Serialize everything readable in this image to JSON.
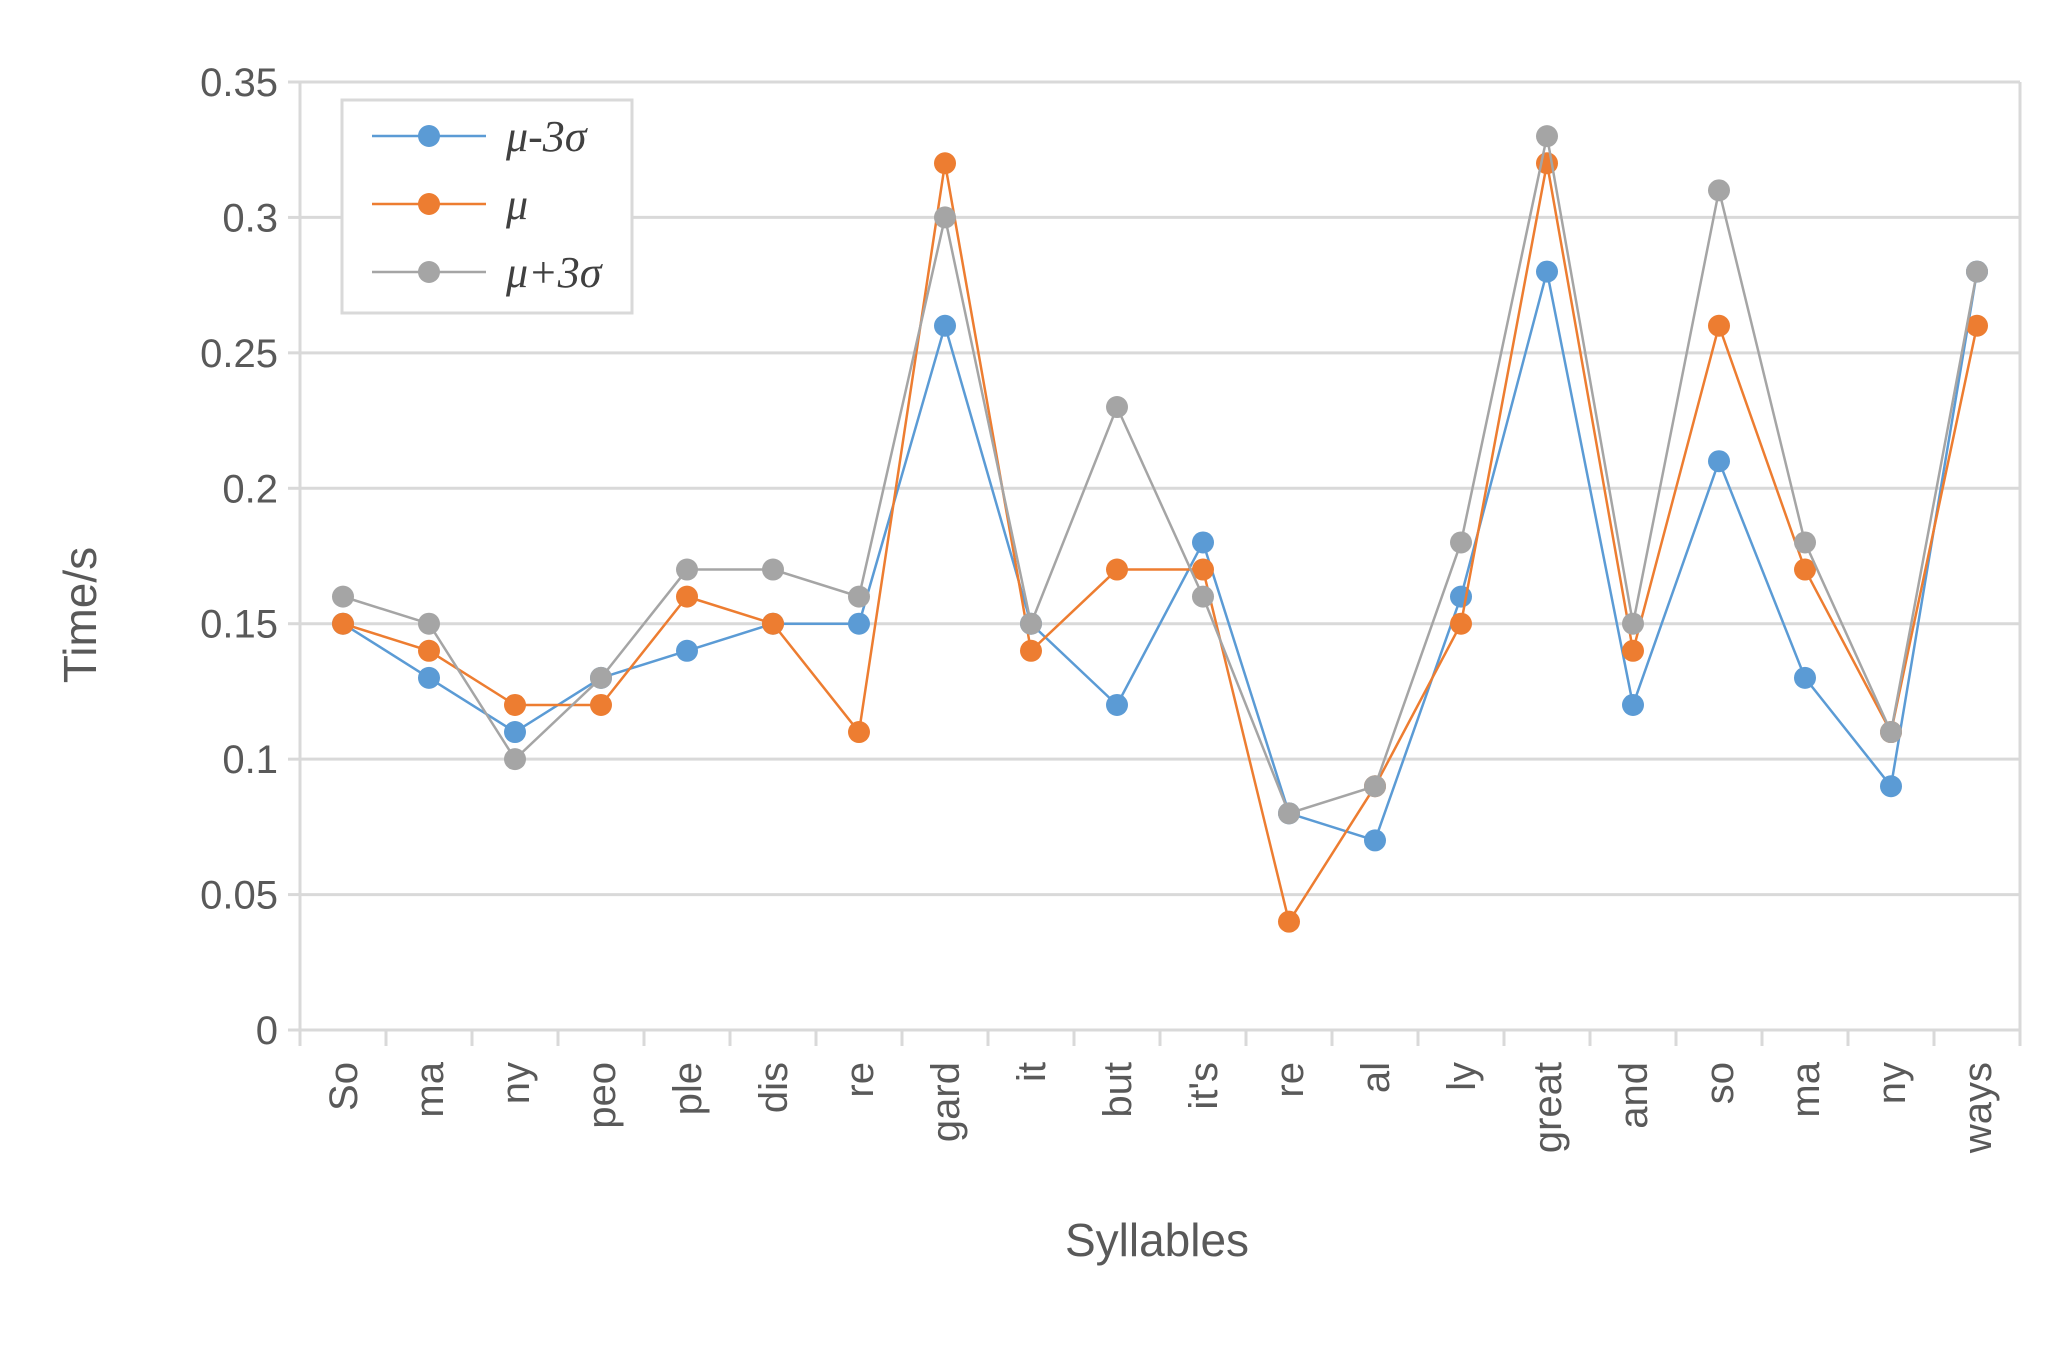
{
  "chart_data": {
    "type": "line",
    "xlabel": "Syllables",
    "ylabel": "Time/s",
    "categories": [
      "So",
      "ma",
      "ny",
      "peo",
      "ple",
      "dis",
      "re",
      "gard",
      "it",
      "but",
      "it's",
      "re",
      "al",
      "ly",
      "great",
      "and",
      "so",
      "ma",
      "ny",
      "ways"
    ],
    "ylim": [
      0,
      0.35
    ],
    "yticks": [
      "0",
      "0.05",
      "0.1",
      "0.15",
      "0.2",
      "0.25",
      "0.3",
      "0.35"
    ],
    "grid": true,
    "legend_position": "top-left",
    "series": [
      {
        "name": "μ-3σ",
        "color": "#5b9bd5",
        "values": [
          0.15,
          0.13,
          0.11,
          0.13,
          0.14,
          0.15,
          0.15,
          0.26,
          0.15,
          0.12,
          0.18,
          0.08,
          0.07,
          0.16,
          0.28,
          0.12,
          0.21,
          0.13,
          0.09,
          0.28
        ]
      },
      {
        "name": "μ",
        "color": "#ed7d31",
        "values": [
          0.15,
          0.14,
          0.12,
          0.12,
          0.16,
          0.15,
          0.11,
          0.32,
          0.14,
          0.17,
          0.17,
          0.04,
          0.09,
          0.15,
          0.32,
          0.14,
          0.26,
          0.17,
          0.11,
          0.26
        ]
      },
      {
        "name": "μ+3σ",
        "color": "#a5a5a5",
        "values": [
          0.16,
          0.15,
          0.1,
          0.13,
          0.17,
          0.17,
          0.16,
          0.3,
          0.15,
          0.23,
          0.16,
          0.08,
          0.09,
          0.18,
          0.33,
          0.15,
          0.31,
          0.18,
          0.11,
          0.28
        ]
      }
    ]
  }
}
